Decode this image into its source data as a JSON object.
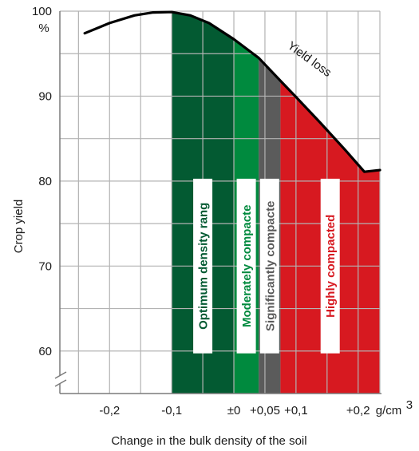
{
  "chart_data": {
    "type": "area",
    "title": "",
    "xlabel": "Change in the bulk density of the soil",
    "ylabel": "Crop yield",
    "xlim": [
      -0.28,
      0.235
    ],
    "ylim": [
      55,
      100
    ],
    "x_ticks": [
      {
        "value": -0.2,
        "label": "-0,2"
      },
      {
        "value": -0.1,
        "label": "-0,1"
      },
      {
        "value": 0,
        "label": "±0"
      },
      {
        "value": 0.05,
        "label": "+0,05"
      },
      {
        "value": 0.1,
        "label": "+0,1"
      },
      {
        "value": 0.2,
        "label": "+0,2"
      }
    ],
    "x_unit": "g/cm",
    "x_unit_superscript": "3",
    "y_ticks": [
      {
        "value": 100,
        "label": "100"
      },
      {
        "value": 90,
        "label": "90"
      },
      {
        "value": 80,
        "label": "80"
      },
      {
        "value": 70,
        "label": "70"
      },
      {
        "value": 60,
        "label": "60"
      }
    ],
    "y_unit": "%",
    "grid": true,
    "bands": [
      {
        "label": "Optimum density rang",
        "from": -0.1,
        "to": 0.0,
        "color": "#035a32",
        "text_color": "#035a32"
      },
      {
        "label": "Moderately compacte",
        "from": 0.0,
        "to": 0.04,
        "color": "#008a3e",
        "text_color": "#008a3e"
      },
      {
        "label": "Significantly compacte",
        "from": 0.04,
        "to": 0.075,
        "color": "#5b5b5b",
        "text_color": "#5b5b5b"
      },
      {
        "label": "Highly compacted",
        "from": 0.075,
        "to": 0.235,
        "color": "#d71920",
        "text_color": "#d71920"
      }
    ],
    "curve": {
      "label": "Yield loss",
      "x": [
        -0.24,
        -0.2,
        -0.16,
        -0.13,
        -0.1,
        -0.07,
        -0.04,
        0.0,
        0.04,
        0.075,
        0.1,
        0.14,
        0.18,
        0.21,
        0.235
      ],
      "y": [
        97.4,
        98.6,
        99.5,
        99.85,
        99.9,
        99.5,
        98.6,
        96.7,
        94.5,
        91.8,
        89.9,
        86.8,
        83.6,
        81.1,
        81.3
      ]
    }
  }
}
